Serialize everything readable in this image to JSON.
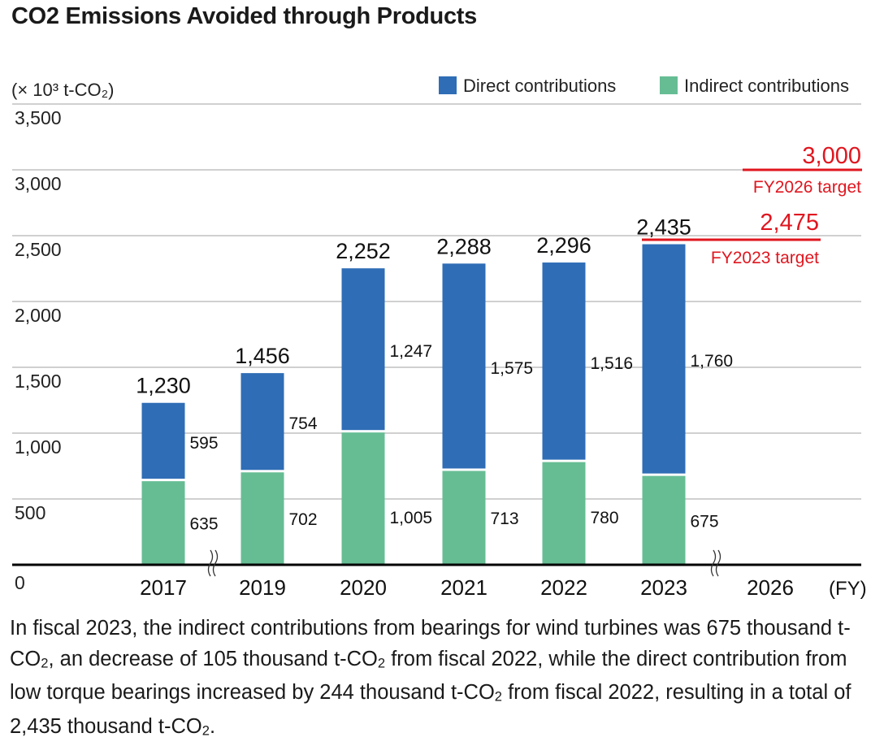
{
  "title": "CO₂ Emissions Avoided through Products",
  "caption": "In fiscal 2023, the indirect contributions from bearings for wind turbines was 675 thousand t-CO₂, an decrease of 105 thousand t-CO₂ from fiscal 2022, while the direct contribution from low torque bearings increased by 244 thousand t-CO₂ from fiscal 2022, resulting in a total of 2,435 thousand t-CO₂.",
  "chart_data": {
    "type": "bar",
    "stacked": true,
    "ylabel": "(× 10³ t-CO₂)",
    "xlabel": "(FY)",
    "ylim": [
      0,
      3500
    ],
    "yticks": [
      "0",
      "500",
      "1,000",
      "1,500",
      "2,000",
      "2,500",
      "3,000",
      "3,500"
    ],
    "grid": true,
    "legend_position": "top-right",
    "categories": [
      "2017",
      "2019",
      "2020",
      "2021",
      "2022",
      "2023",
      "2026"
    ],
    "series": [
      {
        "name": "Indirect contributions",
        "color": "#66bd94",
        "values": [
          635,
          702,
          1005,
          713,
          780,
          675,
          null
        ],
        "labels": [
          "635",
          "702",
          "1,005",
          "713",
          "780",
          "675",
          ""
        ]
      },
      {
        "name": "Direct contributions",
        "color": "#2f6db6",
        "values": [
          595,
          754,
          1247,
          1575,
          1516,
          1760,
          null
        ],
        "labels": [
          "595",
          "754",
          "1,247",
          "1,575",
          "1,516",
          "1,760",
          ""
        ]
      }
    ],
    "totals": [
      "1,230",
      "1,456",
      "2,252",
      "2,288",
      "2,296",
      "2,435",
      ""
    ],
    "axis_breaks": [
      "between 2017 and 2019",
      "between 2023 and 2026"
    ],
    "targets": [
      {
        "value": 2475,
        "value_label": "2,475",
        "label": "FY2023 target",
        "color": "#e0161f"
      },
      {
        "value": 3000,
        "value_label": "3,000",
        "label": "FY2026 target",
        "color": "#e0161f"
      }
    ]
  }
}
